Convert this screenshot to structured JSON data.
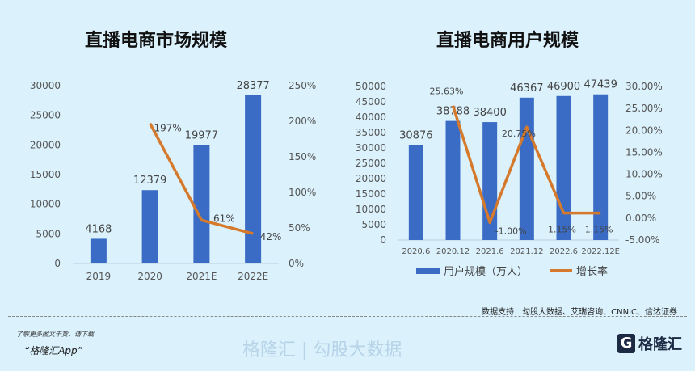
{
  "chart_data": [
    {
      "type": "bar+line",
      "title": "直播电商市场规模",
      "categories": [
        "2019",
        "2020",
        "2021E",
        "2022E"
      ],
      "series": [
        {
          "type": "bar",
          "values": [
            4168,
            12379,
            19977,
            28377
          ],
          "color": "#3a6cc6",
          "axis": "left"
        },
        {
          "type": "line",
          "values": [
            null,
            197,
            61,
            42
          ],
          "labels": [
            "",
            "197%",
            "61%",
            "42%"
          ],
          "color": "#d57a2c",
          "axis": "right"
        }
      ],
      "ylim": [
        0,
        30000
      ],
      "yticks": [
        "0",
        "5000",
        "10000",
        "15000",
        "20000",
        "25000",
        "30000"
      ],
      "y2lim": [
        0,
        250
      ],
      "y2ticks": [
        "0%",
        "50%",
        "100%",
        "150%",
        "200%",
        "250%"
      ],
      "grid": false
    },
    {
      "type": "bar+line",
      "title": "直播电商用户规模",
      "categories": [
        "2020.6",
        "2020.12",
        "2021.6",
        "2021.12",
        "2022.6",
        "2022.12E"
      ],
      "series": [
        {
          "type": "bar",
          "name": "用户规模（万人）",
          "values": [
            30876,
            38788,
            38400,
            46367,
            46900,
            47439
          ],
          "color": "#3a6cc6",
          "axis": "left"
        },
        {
          "type": "line",
          "name": "增长率",
          "values": [
            null,
            25.63,
            -1.0,
            20.75,
            1.15,
            1.15
          ],
          "labels": [
            "",
            "25.63%",
            "-1.00%",
            "20.75%",
            "1.15%",
            "1.15%"
          ],
          "color": "#d57a2c",
          "axis": "right"
        }
      ],
      "ylim": [
        0,
        50000
      ],
      "yticks": [
        "0",
        "5000",
        "10000",
        "15000",
        "20000",
        "25000",
        "30000",
        "35000",
        "40000",
        "45000",
        "50000"
      ],
      "y2lim": [
        -5,
        30
      ],
      "y2ticks": [
        "-5.00%",
        "0.00%",
        "5.00%",
        "10.00%",
        "15.00%",
        "20.00%",
        "25.00%",
        "30.00%"
      ],
      "legend": "bottom",
      "grid": false
    }
  ],
  "footer": {
    "source": "数据支持：勾股大数据、艾瑞咨询、CNNIC、信达证券",
    "promo_line1": "了解更多图文干货，请下载",
    "promo_line2": "“格隆汇App”",
    "logo_text": "格隆汇"
  },
  "watermark": "格隆汇 | 勾股大数据"
}
